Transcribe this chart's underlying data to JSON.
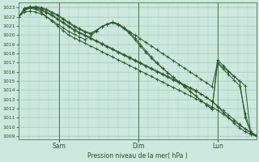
{
  "bg_color": "#cde8df",
  "grid_color": "#a8ccbf",
  "line_color": "#2d5a2d",
  "marker_color": "#2d5a2d",
  "xlabel_text": "Pression niveau de la mer( hPa )",
  "ymin": 1009,
  "ymax": 1023,
  "yticks": [
    1009,
    1010,
    1011,
    1012,
    1013,
    1014,
    1015,
    1016,
    1017,
    1018,
    1019,
    1020,
    1021,
    1022,
    1023
  ],
  "xtick_labels": [
    "Sam",
    "Dim",
    "Lun"
  ],
  "xtick_positions": [
    24,
    72,
    120
  ],
  "vline_positions": [
    24,
    72,
    120
  ],
  "total_hours": 143,
  "series": [
    [
      1022.0,
      1022.8,
      1022.9,
      1022.8,
      1022.5,
      1022.0,
      1021.5,
      1021.0,
      1020.5,
      1020.0,
      1019.7,
      1019.4,
      1019.1,
      1018.8,
      1018.5,
      1018.2,
      1017.9,
      1017.6,
      1017.3,
      1017.0,
      1016.7,
      1016.4,
      1016.1,
      1015.8,
      1015.5,
      1015.2,
      1014.9,
      1014.6,
      1014.3,
      1014.0,
      1013.7,
      1013.4,
      1013.1,
      1012.8,
      1012.5,
      1012.2,
      1011.8,
      1011.4,
      1011.0,
      1010.6,
      1010.2,
      1009.8,
      1009.4,
      1009.1
    ],
    [
      1022.0,
      1022.9,
      1023.0,
      1022.9,
      1022.7,
      1022.4,
      1022.1,
      1021.7,
      1021.3,
      1020.9,
      1020.5,
      1020.2,
      1019.9,
      1019.6,
      1019.3,
      1019.0,
      1018.7,
      1018.4,
      1018.1,
      1017.8,
      1017.5,
      1017.2,
      1016.9,
      1016.6,
      1016.3,
      1016.0,
      1015.7,
      1015.4,
      1015.1,
      1014.8,
      1014.5,
      1014.2,
      1013.9,
      1013.6,
      1013.2,
      1012.8,
      1012.3,
      1011.8,
      1011.3,
      1010.8,
      1010.3,
      1009.8,
      1009.4,
      1009.1
    ],
    [
      1022.0,
      1022.9,
      1023.1,
      1023.0,
      1022.8,
      1022.5,
      1022.2,
      1021.8,
      1021.4,
      1021.0,
      1020.6,
      1020.3,
      1020.0,
      1019.7,
      1019.4,
      1019.1,
      1018.8,
      1018.5,
      1018.2,
      1017.9,
      1017.6,
      1017.3,
      1017.0,
      1016.7,
      1016.4,
      1016.1,
      1015.8,
      1015.5,
      1015.2,
      1014.9,
      1014.6,
      1014.3,
      1014.0,
      1013.6,
      1013.2,
      1012.8,
      1012.2,
      1011.6,
      1011.0,
      1010.4,
      1009.9,
      1009.5,
      1009.2,
      1009.0
    ],
    [
      1022.0,
      1022.8,
      1023.0,
      1023.1,
      1023.0,
      1022.8,
      1022.5,
      1022.2,
      1021.8,
      1021.4,
      1021.0,
      1020.7,
      1020.4,
      1020.2,
      1020.5,
      1020.9,
      1021.2,
      1021.3,
      1021.1,
      1020.7,
      1020.2,
      1019.5,
      1018.8,
      1018.1,
      1017.5,
      1016.9,
      1016.4,
      1015.9,
      1015.4,
      1014.9,
      1014.4,
      1013.9,
      1013.4,
      1012.9,
      1012.4,
      1011.9,
      1017.3,
      1016.7,
      1016.1,
      1015.5,
      1015.0,
      1011.0,
      1009.5,
      1009.1
    ],
    [
      1022.0,
      1022.7,
      1022.9,
      1023.0,
      1022.9,
      1022.7,
      1022.4,
      1022.1,
      1021.7,
      1021.3,
      1020.9,
      1020.6,
      1020.3,
      1020.1,
      1020.5,
      1020.9,
      1021.2,
      1021.4,
      1021.2,
      1020.8,
      1020.3,
      1019.7,
      1019.0,
      1018.3,
      1017.6,
      1017.0,
      1016.4,
      1015.9,
      1015.4,
      1014.9,
      1014.4,
      1013.9,
      1013.4,
      1012.9,
      1012.4,
      1012.0,
      1016.9,
      1016.3,
      1015.7,
      1015.1,
      1014.5,
      1011.5,
      1009.4,
      1009.1
    ],
    [
      1022.0,
      1022.5,
      1022.6,
      1022.5,
      1022.3,
      1022.0,
      1021.6,
      1021.2,
      1020.8,
      1020.4,
      1020.1,
      1019.8,
      1019.5,
      1019.9,
      1020.4,
      1020.9,
      1021.2,
      1021.4,
      1021.2,
      1020.8,
      1020.4,
      1020.0,
      1019.6,
      1019.2,
      1018.8,
      1018.4,
      1018.0,
      1017.6,
      1017.2,
      1016.8,
      1016.4,
      1016.0,
      1015.6,
      1015.2,
      1014.8,
      1014.4,
      1017.0,
      1016.5,
      1016.0,
      1015.5,
      1015.0,
      1014.5,
      1009.3,
      1009.1
    ]
  ]
}
